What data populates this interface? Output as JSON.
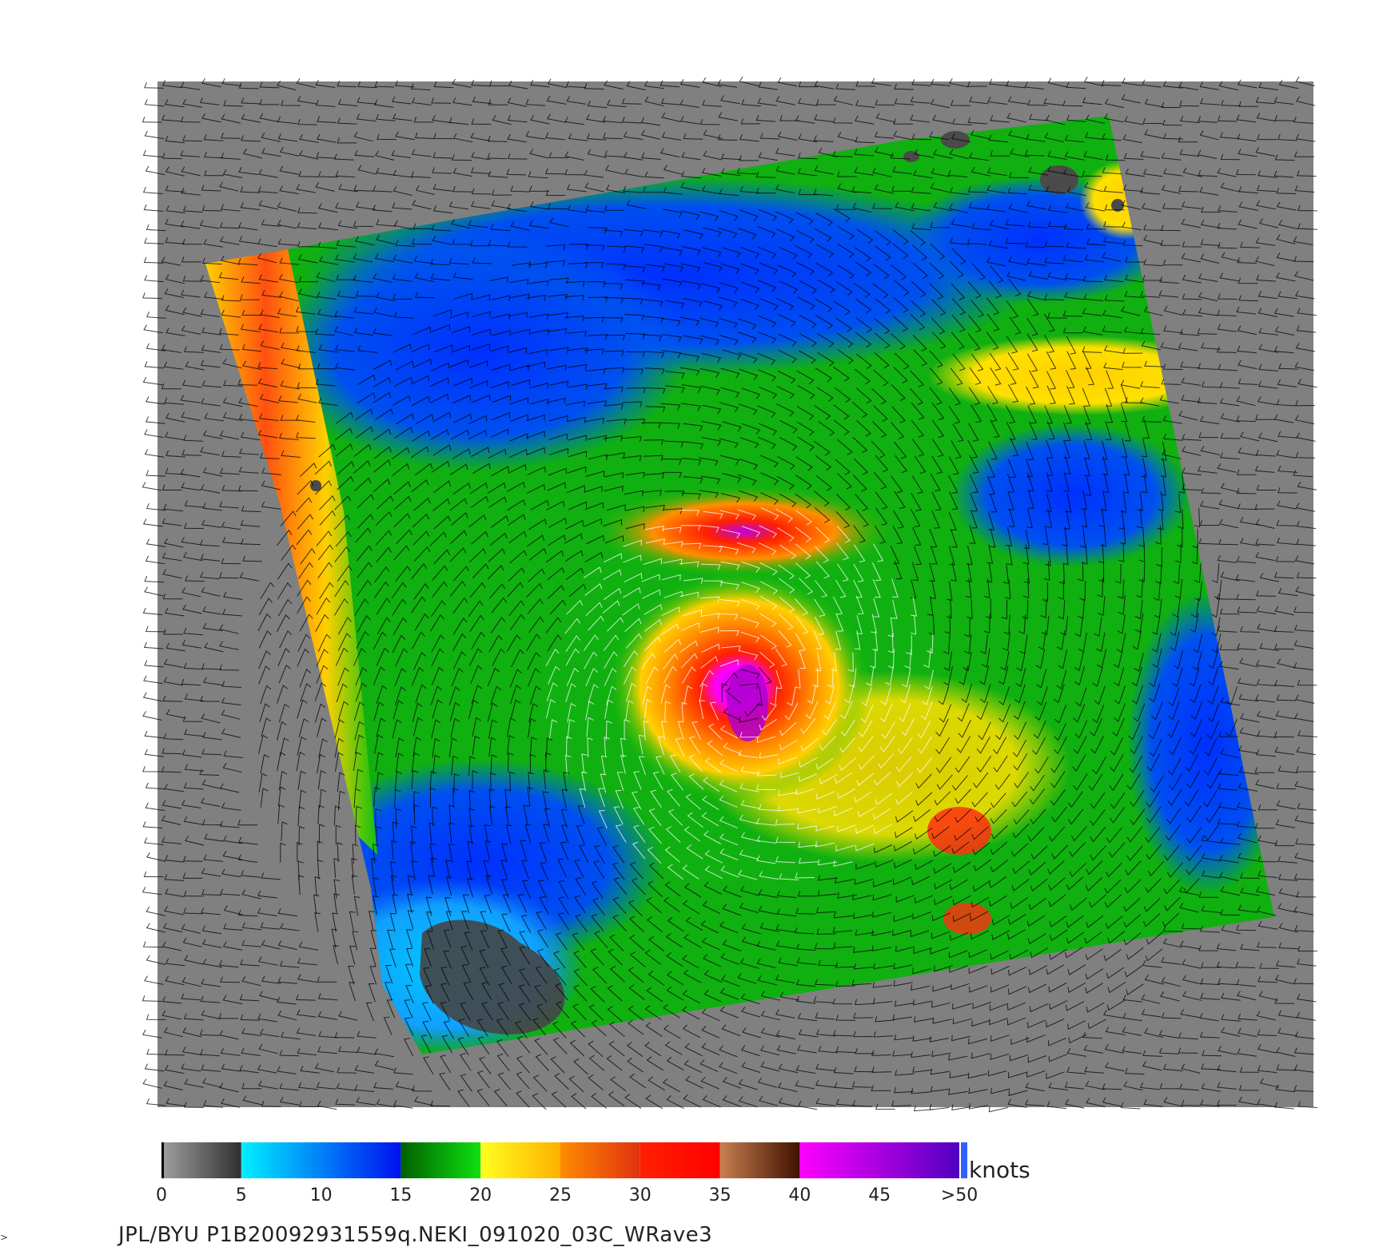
{
  "map": {
    "background_color": "#808080",
    "land_color": "#4a4a4a",
    "barb_color_low": "#000000",
    "barb_color_high": "#ffffff",
    "features": [
      "wind-swath",
      "storm-center",
      "wind-barbs",
      "island-cluster"
    ]
  },
  "colorbar": {
    "units": "knots",
    "tick_labels": [
      "0",
      "5",
      "10",
      "15",
      "20",
      "25",
      "30",
      "35",
      "40",
      "45",
      ">50"
    ],
    "bands": [
      {
        "min": 0,
        "max": 5,
        "start": "#a0a0a0",
        "end": "#303030"
      },
      {
        "min": 5,
        "max": 15,
        "start": "#00f0ff",
        "end": "#0010f0"
      },
      {
        "min": 15,
        "max": 20,
        "start": "#006000",
        "end": "#10e010"
      },
      {
        "min": 20,
        "max": 25,
        "start": "#ffff20",
        "end": "#ffb000"
      },
      {
        "min": 25,
        "max": 30,
        "start": "#ff8c00",
        "end": "#e03010"
      },
      {
        "min": 30,
        "max": 35,
        "start": "#ff2000",
        "end": "#ff0000"
      },
      {
        "min": 35,
        "max": 40,
        "start": "#c88050",
        "end": "#401000"
      },
      {
        "min": 40,
        "max": 50,
        "start": "#ff00ff",
        "end": "#5000c0"
      }
    ]
  },
  "footer": {
    "text": "JPL/BYU  P1B20092931559q.NEKI_091020_03C_WRave3"
  },
  "corner_mark": ">"
}
